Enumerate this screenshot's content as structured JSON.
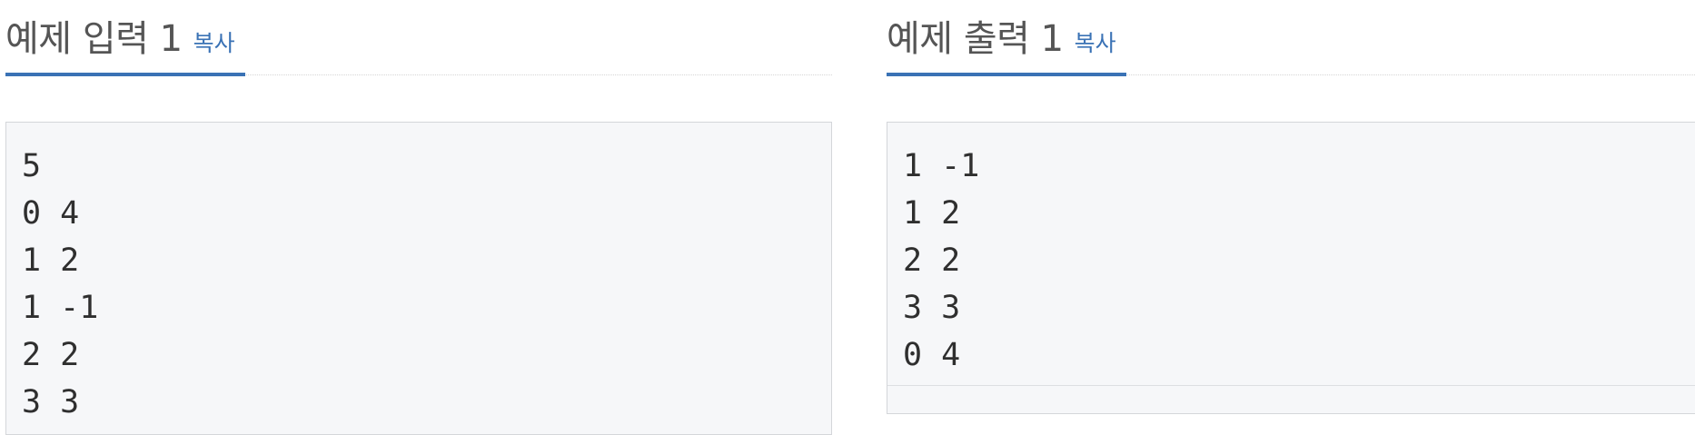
{
  "input": {
    "title": "예제 입력 1",
    "copy_label": "복사",
    "lines": "5\n0 4\n1 2\n1 -1\n2 2\n3 3"
  },
  "output": {
    "title": "예제 출력 1",
    "copy_label": "복사",
    "lines": "1 -1\n1 2\n2 2\n3 3\n0 4"
  },
  "colors": {
    "accent": "#3a72b5",
    "title_text": "#555555",
    "code_background": "#f6f7f9"
  }
}
